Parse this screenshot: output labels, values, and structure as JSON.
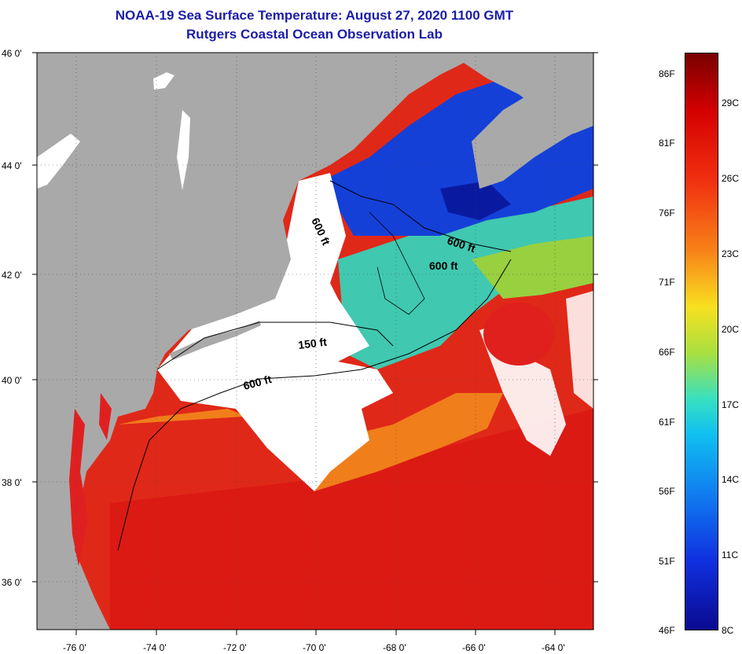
{
  "header": {
    "title": "NOAA-19 Sea Surface Temperature:  August 27, 2020 1100 GMT",
    "subtitle": "Rutgers Coastal Ocean Observation Lab"
  },
  "map": {
    "lat_labels": [
      "46 0'",
      "44 0'",
      "42 0'",
      "40 0'",
      "38 0'",
      "36 0'"
    ],
    "lon_labels": [
      "-76 0'",
      "-74 0'",
      "-72 0'",
      "-70 0'",
      "-68 0'",
      "-66 0'",
      "-64 0'"
    ],
    "contour_labels": [
      {
        "text": "600 ft",
        "id": "contour-600-gom-west"
      },
      {
        "text": "600 ft",
        "id": "contour-600-gom-east"
      },
      {
        "text": "600 ft",
        "id": "contour-600-georges"
      },
      {
        "text": "150 ft",
        "id": "contour-150"
      },
      {
        "text": "600 ft",
        "id": "contour-600-shelf"
      }
    ],
    "colors": {
      "land": "#a9a9a9",
      "cloud": "#ffffff",
      "cold": "#1030d8",
      "cool": "#18b4e0",
      "mild": "#8ad040",
      "warm": "#f08a1a",
      "hot": "#e02020"
    }
  },
  "colorbar": {
    "fahrenheit": [
      "86F",
      "81F",
      "76F",
      "71F",
      "66F",
      "61F",
      "56F",
      "51F",
      "46F"
    ],
    "celsius": [
      "29C",
      "26C",
      "23C",
      "20C",
      "17C",
      "14C",
      "11C",
      "8C"
    ]
  }
}
